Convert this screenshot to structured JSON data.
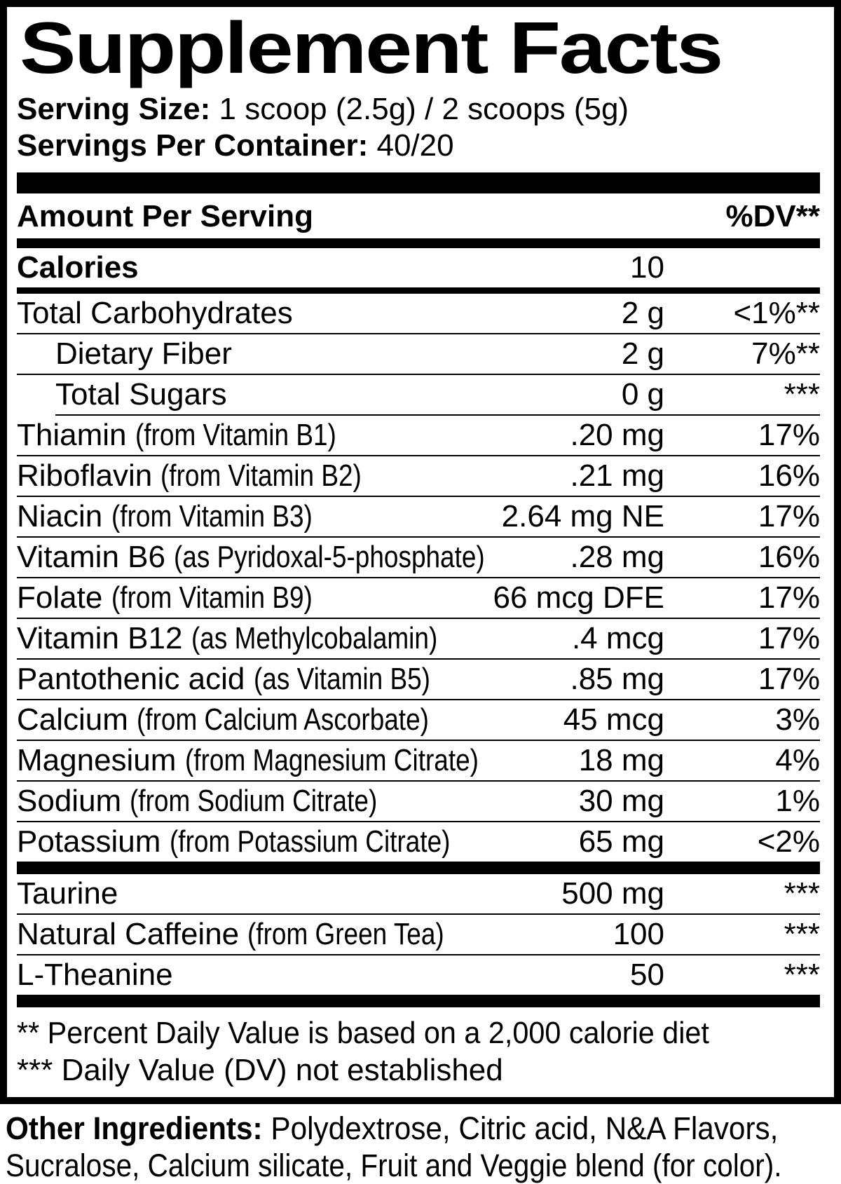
{
  "label": {
    "title": "Supplement Facts",
    "serving_size_label": "Serving Size:",
    "serving_size_value": " 1 scoop (2.5g) / 2 scoops (5g)",
    "servings_label": "Servings Per Container:",
    "servings_value": " 40/20",
    "header": {
      "amount": "Amount Per Serving",
      "dv": "%DV**"
    },
    "rows": [
      {
        "name": "Calories",
        "note": "",
        "amount": "10",
        "dv": "",
        "indent": false,
        "bold": true,
        "rule": "bar-med"
      },
      {
        "name": "Total Carbohydrates",
        "note": "",
        "amount": "2 g",
        "dv": "<1%**",
        "indent": false,
        "bold": false,
        "rule": "hair"
      },
      {
        "name": "Dietary Fiber",
        "note": "",
        "amount": "2 g",
        "dv": "7%**",
        "indent": true,
        "bold": false,
        "rule": "hair"
      },
      {
        "name": "Total Sugars",
        "note": "",
        "amount": "0 g",
        "dv": "***",
        "indent": true,
        "bold": false,
        "rule": "hair-indent"
      },
      {
        "name": "Thiamin",
        "note": "(from Vitamin B1)",
        "amount": ".20 mg",
        "dv": "17%",
        "indent": false,
        "bold": false,
        "rule": "hair"
      },
      {
        "name": "Riboflavin",
        "note": "(from Vitamin B2)",
        "amount": ".21 mg",
        "dv": "16%",
        "indent": false,
        "bold": false,
        "rule": "hair"
      },
      {
        "name": "Niacin",
        "note": "(from Vitamin B3)",
        "amount": "2.64 mg NE",
        "dv": "17%",
        "indent": false,
        "bold": false,
        "rule": "hair"
      },
      {
        "name": "Vitamin B6",
        "note": "(as Pyridoxal-5-phosphate)",
        "amount": ".28 mg",
        "dv": "16%",
        "indent": false,
        "bold": false,
        "rule": "hair"
      },
      {
        "name": "Folate",
        "note": "(from Vitamin B9)",
        "amount": "66 mcg DFE",
        "dv": "17%",
        "indent": false,
        "bold": false,
        "rule": "hair"
      },
      {
        "name": "Vitamin B12",
        "note": "(as Methylcobalamin)",
        "amount": ".4 mcg",
        "dv": "17%",
        "indent": false,
        "bold": false,
        "rule": "hair"
      },
      {
        "name": "Pantothenic acid",
        "note": "(as Vitamin B5)",
        "amount": ".85 mg",
        "dv": "17%",
        "indent": false,
        "bold": false,
        "rule": "hair"
      },
      {
        "name": "Calcium",
        "note": "(from Calcium Ascorbate)",
        "amount": "45 mcg",
        "dv": "3%",
        "indent": false,
        "bold": false,
        "rule": "hair"
      },
      {
        "name": "Magnesium",
        "note": "(from Magnesium Citrate)",
        "amount": "18 mg",
        "dv": "4%",
        "indent": false,
        "bold": false,
        "rule": "hair"
      },
      {
        "name": "Sodium",
        "note": "(from Sodium Citrate)",
        "amount": "30 mg",
        "dv": "1%",
        "indent": false,
        "bold": false,
        "rule": "hair"
      },
      {
        "name": "Potassium",
        "note": "(from Potassium Citrate)",
        "amount": "65 mg",
        "dv": "<2%",
        "indent": false,
        "bold": false,
        "rule": "bar-thick"
      },
      {
        "name": "Taurine",
        "note": "",
        "amount": "500 mg",
        "dv": "***",
        "indent": false,
        "bold": false,
        "rule": "hair"
      },
      {
        "name": "Natural Caffeine",
        "note": "(from Green Tea)",
        "amount": "100",
        "dv": "***",
        "indent": false,
        "bold": false,
        "rule": "hair"
      },
      {
        "name": "L-Theanine",
        "note": "",
        "amount": "50",
        "dv": "***",
        "indent": false,
        "bold": false,
        "rule": "bar-thick"
      }
    ],
    "footnotes": [
      "** Percent Daily Value is based on a 2,000 calorie diet",
      "*** Daily Value (DV) not established"
    ],
    "other_ingredients": {
      "label": "Other Ingredients:",
      "line1_rest": " Polydextrose, Citric acid, N&A Flavors,",
      "line2": "Sucralose, Calcium silicate, Fruit and Veggie blend (for color)."
    }
  }
}
